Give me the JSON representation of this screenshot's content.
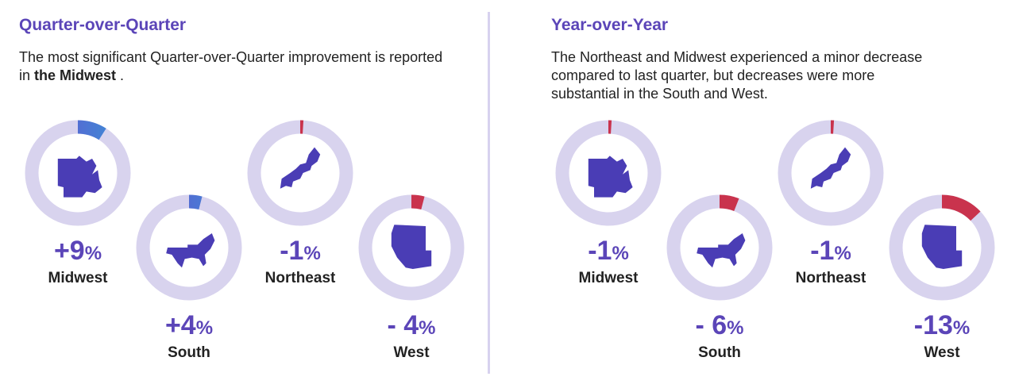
{
  "qoq": {
    "title": "Quarter-over-Quarter",
    "desc_pre": "The most significant Quarter-over-Quarter improvement is reported in ",
    "desc_bold": "the Midwest",
    "desc_post": " ."
  },
  "yoy": {
    "title": "Year-over-Year",
    "desc": "The Northeast and Midwest experienced a minor decrease compared to last quarter, but decreases were more substantial in the South and West."
  },
  "colors": {
    "accent": "#5b45b8",
    "map": "#4a3db5",
    "track": "#d8d3ee",
    "negative": "#c9334d",
    "positive_start": "#6a4fd0",
    "positive_end": "#3a8fd6"
  },
  "chart_data": [
    {
      "type": "donut",
      "title": "Quarter-over-Quarter",
      "items": [
        {
          "region": "Midwest",
          "value": 9,
          "num": "+9",
          "pct": "%"
        },
        {
          "region": "South",
          "value": 4,
          "num": "+4",
          "pct": "%"
        },
        {
          "region": "Northeast",
          "value": -1,
          "num": "-1",
          "pct": "%"
        },
        {
          "region": "West",
          "value": -4,
          "num": "- 4",
          "pct": "%"
        }
      ]
    },
    {
      "type": "donut",
      "title": "Year-over-Year",
      "items": [
        {
          "region": "Midwest",
          "value": -1,
          "num": "-1",
          "pct": "%"
        },
        {
          "region": "South",
          "value": -6,
          "num": "- 6",
          "pct": "%"
        },
        {
          "region": "Northeast",
          "value": -1,
          "num": "-1",
          "pct": "%"
        },
        {
          "region": "West",
          "value": -13,
          "num": "-13",
          "pct": "%"
        }
      ]
    }
  ]
}
